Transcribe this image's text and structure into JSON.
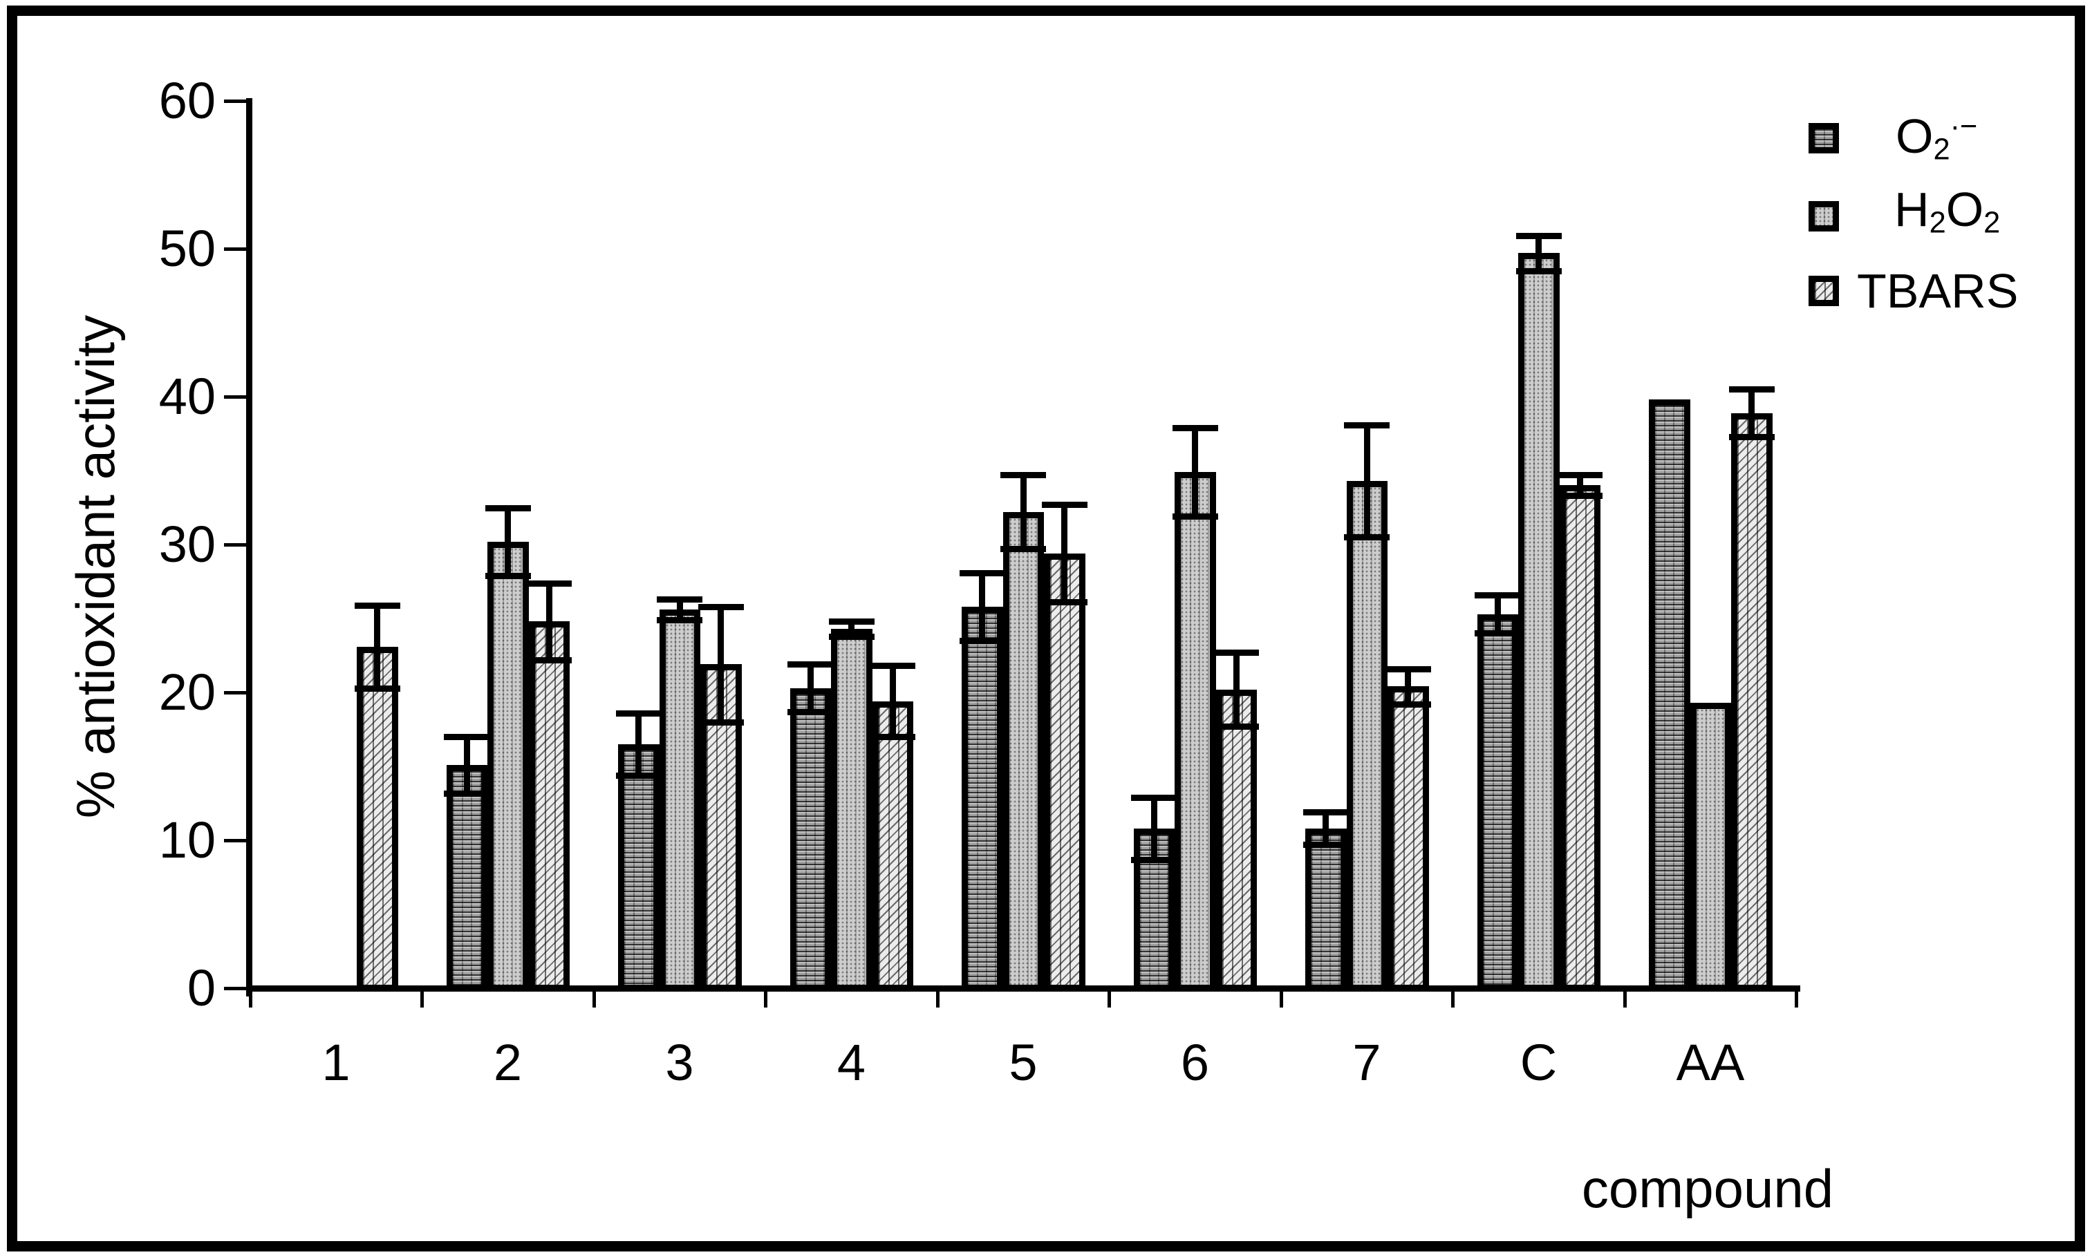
{
  "figure": {
    "background": "#ffffff",
    "frame_color": "#000000",
    "axis_color": "#000000",
    "series_fill_colors": {
      "o2": "#ababab",
      "h2o2": "#cdcdcd",
      "tbars": "#ececec"
    },
    "hatch_styles": {
      "o2": "horizontal-line-grid",
      "h2o2": "fine-dot-dither",
      "tbars": "diagonal-lines"
    }
  },
  "legend": {
    "items": [
      {
        "series": "o2",
        "base": "O",
        "sub": "2",
        "sup": "·−"
      },
      {
        "series": "h2o2",
        "p1": "H",
        "s1": "2",
        "p2": "O",
        "s2": "2"
      },
      {
        "series": "tbars",
        "label": "TBARS"
      }
    ]
  },
  "chart_data": {
    "type": "bar",
    "title": "",
    "xlabel": "compound",
    "ylabel": "% antioxidant activity",
    "categories": [
      "1",
      "2",
      "3",
      "4",
      "5",
      "6",
      "7",
      "C",
      "AA"
    ],
    "ylim": [
      0,
      60
    ],
    "yticks": [
      0,
      10,
      20,
      30,
      40,
      50,
      60
    ],
    "grid": false,
    "legend_position": "top-right",
    "error_bars": true,
    "series": [
      {
        "id": "o2",
        "name": "O2·−",
        "values": [
          null,
          15.1,
          16.5,
          20.3,
          25.8,
          10.8,
          10.8,
          25.3,
          39.8
        ],
        "errors": [
          null,
          1.9,
          2.1,
          1.6,
          2.3,
          2.1,
          1.1,
          1.3,
          0
        ]
      },
      {
        "id": "h2o2",
        "name": "H2O2",
        "values": [
          null,
          30.2,
          25.6,
          24.3,
          32.2,
          34.9,
          34.3,
          49.7,
          19.3
        ],
        "errors": [
          null,
          2.3,
          0.7,
          0.5,
          2.5,
          3.0,
          3.8,
          1.2,
          0
        ]
      },
      {
        "id": "tbars",
        "name": "TBARS",
        "values": [
          23.1,
          24.8,
          21.9,
          19.4,
          29.4,
          20.2,
          20.4,
          34.0,
          38.9
        ],
        "errors": [
          2.8,
          2.6,
          3.9,
          2.4,
          3.3,
          2.5,
          1.2,
          0.7,
          1.6
        ]
      }
    ]
  }
}
